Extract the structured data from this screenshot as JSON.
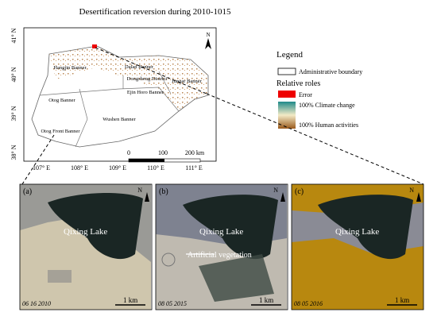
{
  "title": "Desertification reversion during 2010-1015",
  "map": {
    "lat_labels": [
      "41° N",
      "40° N",
      "39° N",
      "38° N"
    ],
    "lon_labels": [
      "107° E",
      "108° E",
      "109° E",
      "110° E",
      "111° E"
    ],
    "regions": [
      "Hangjin Banner",
      "Dalad Banner",
      "Dongsheng District",
      "Jungar Banner",
      "Ejin Horo Banner",
      "Otog Banner",
      "Wushen Banner",
      "Otog Front Banner"
    ],
    "scale_labels": [
      "0",
      "100",
      "200 km"
    ],
    "north": "N"
  },
  "legend": {
    "title": "Legend",
    "boundary": "Administrative boundary",
    "roles_title": "Relative roles",
    "error": "Error",
    "climate": "100% Climate change",
    "human": "100% Human activities"
  },
  "panels": [
    {
      "label": "(a)",
      "lake": "Qixing Lake",
      "date": "06 16 2010",
      "scale": "1 km",
      "north": "N"
    },
    {
      "label": "(b)",
      "lake": "Qixing Lake",
      "date": "08 05 2015",
      "scale": "1 km",
      "north": "N",
      "annotation": "Artificial vegetation"
    },
    {
      "label": "(c)",
      "lake": "Qixing Lake",
      "date": "08 05 2016",
      "scale": "1 km",
      "north": "N"
    }
  ]
}
